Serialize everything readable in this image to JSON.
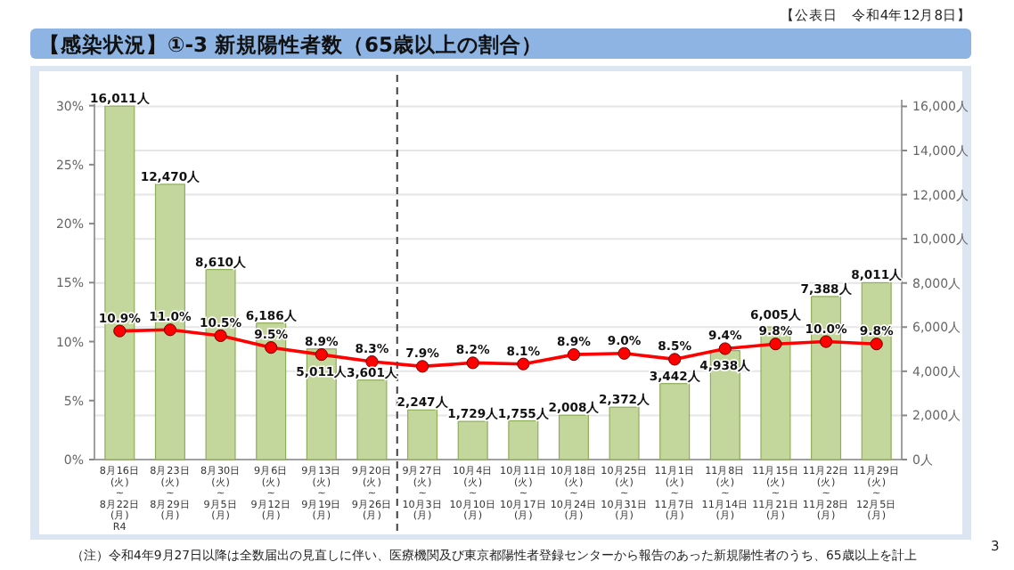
{
  "chart_data": {
    "type": "bar",
    "title": "【感染状況】①-3 新規陽性者数（65歳以上の割合）",
    "annotations": [
      "【公表日　令和4年12月8日】",
      "（注）令和4年9月27日以降は全数届出の見直しに伴い、医療機関及び東京都陽性者登録センターから報告のあった新規陽性者のうち、65歳以上を計上",
      "3"
    ],
    "categories": [
      "8月16日\n(火)\n~\n8月22日\n(月)\nR4",
      "8月23日\n(火)\n~\n8月29日\n(月)",
      "8月30日\n(火)\n~\n9月5日\n(月)",
      "9月6日\n(火)\n~\n9月12日\n(月)",
      "9月13日\n(火)\n~\n9月19日\n(月)",
      "9月20日\n(火)\n~\n9月26日\n(月)",
      "9月27日\n(火)\n~\n10月3日\n(月)",
      "10月4日\n(火)\n~\n10月10日\n(月)",
      "10月11日\n(火)\n~\n10月17日\n(月)",
      "10月18日\n(火)\n~\n10月24日\n(月)",
      "10月25日\n(火)\n~\n10月31日\n(月)",
      "11月1日\n(火)\n~\n11月7日\n(月)",
      "11月8日\n(火)\n~\n11月14日\n(月)",
      "11月15日\n(火)\n~\n11月21日\n(月)",
      "11月22日\n(火)\n~\n11月28日\n(月)",
      "11月29日\n(火)\n~\n12月5日\n(月)"
    ],
    "series": [
      {
        "axis": "y2",
        "color": "#c3d69b",
        "values": [
          16011,
          12470,
          8610,
          6186,
          5011,
          3601,
          2247,
          1729,
          1755,
          2008,
          2372,
          3442,
          4938,
          6005,
          7388,
          8011
        ],
        "value_labels": [
          "16,011人",
          "12,470人",
          "8,610人",
          "6,186人",
          "5,011人",
          "3,601人",
          "2,247人",
          "1,729人",
          "1,755人",
          "2,008人",
          "2,372人",
          "3,442人",
          "4,938人",
          "6,005人",
          "7,388人",
          "8,011人"
        ]
      },
      {
        "type": "line",
        "axis": "y",
        "color": "#ff0000",
        "marker": "circle",
        "line_style": "solid",
        "values": [
          10.9,
          11.0,
          10.5,
          9.5,
          8.9,
          8.3,
          7.9,
          8.2,
          8.1,
          8.9,
          9.0,
          8.5,
          9.4,
          9.8,
          10.0,
          9.8
        ],
        "value_labels": [
          "10.9%",
          "11.0%",
          "10.5%",
          "9.5%",
          "8.9%",
          "8.3%",
          "7.9%",
          "8.2%",
          "8.1%",
          "8.9%",
          "9.0%",
          "8.5%",
          "9.4%",
          "9.8%",
          "10.0%",
          "9.8%"
        ]
      }
    ],
    "ylim": [
      0,
      30.5
    ],
    "yticks": [
      {
        "value": 0,
        "label": "0%"
      },
      {
        "value": 5,
        "label": "5%"
      },
      {
        "value": 10,
        "label": "10%"
      },
      {
        "value": 15,
        "label": "15%"
      },
      {
        "value": 20,
        "label": "20%"
      },
      {
        "value": 25,
        "label": "25%"
      },
      {
        "value": 30,
        "label": "30%"
      }
    ],
    "y2lim": [
      0,
      16300
    ],
    "y2ticks": [
      {
        "value": 0,
        "label": "0人"
      },
      {
        "value": 2000,
        "label": "2,000人"
      },
      {
        "value": 4000,
        "label": "4,000人"
      },
      {
        "value": 6000,
        "label": "6,000人"
      },
      {
        "value": 8000,
        "label": "8,000人"
      },
      {
        "value": 10000,
        "label": "10,000人"
      },
      {
        "value": 12000,
        "label": "12,000人"
      },
      {
        "value": 14000,
        "label": "14,000人"
      },
      {
        "value": 16000,
        "label": "16,000人"
      }
    ],
    "grid": "y2",
    "ref_lines": [
      {
        "axis": "x",
        "value": "9月27日\n(火)\n~\n10月3日\n(月)",
        "color": "#404040",
        "line_style": "dashed"
      }
    ]
  }
}
